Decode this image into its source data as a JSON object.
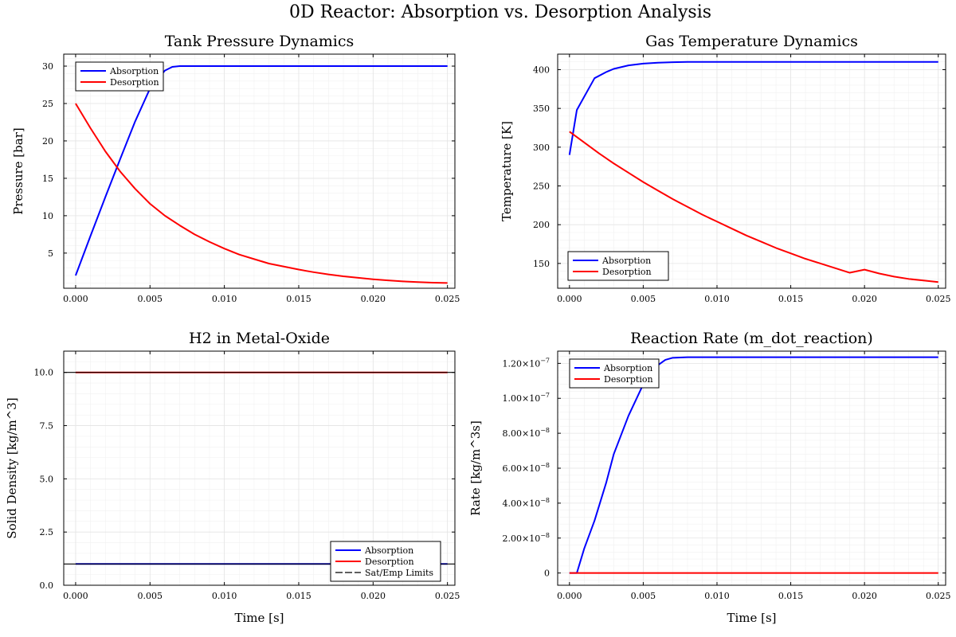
{
  "figure": {
    "suptitle": "0D Reactor: Absorption vs. Desorption Analysis"
  },
  "colors": {
    "absorption": "#0000ff",
    "desorption": "#ff0000",
    "limits": "#000000"
  },
  "chart_data": [
    {
      "id": "pressure",
      "type": "line",
      "title": "Tank Pressure Dynamics",
      "xlabel": "",
      "ylabel": "Pressure [bar]",
      "xlim": [
        -0.0008,
        0.0255
      ],
      "ylim": [
        0.3,
        31.6
      ],
      "xticks": [
        0.0,
        0.005,
        0.01,
        0.015,
        0.02,
        0.025
      ],
      "xticklabels": [
        "0.000",
        "0.005",
        "0.010",
        "0.015",
        "0.020",
        "0.025"
      ],
      "yticks": [
        5,
        10,
        15,
        20,
        25,
        30
      ],
      "yticklabels": [
        "5",
        "10",
        "15",
        "20",
        "25",
        "30"
      ],
      "grid": true,
      "legend_position": "top-left",
      "series": [
        {
          "name": "Absorption",
          "color": "#0000ff",
          "x": [
            0,
            0.001,
            0.002,
            0.003,
            0.004,
            0.005,
            0.006,
            0.0065,
            0.007,
            0.008,
            0.01,
            0.015,
            0.02,
            0.025
          ],
          "y": [
            2.0,
            7.3,
            12.5,
            17.6,
            22.6,
            27.0,
            29.4,
            29.9,
            30.0,
            30.0,
            30.0,
            30.0,
            30.0,
            30.0
          ]
        },
        {
          "name": "Desorption",
          "color": "#ff0000",
          "x": [
            0,
            0.001,
            0.002,
            0.003,
            0.004,
            0.005,
            0.006,
            0.007,
            0.008,
            0.009,
            0.01,
            0.011,
            0.012,
            0.013,
            0.014,
            0.015,
            0.016,
            0.017,
            0.018,
            0.019,
            0.02,
            0.021,
            0.022,
            0.023,
            0.024,
            0.025
          ],
          "y": [
            25.0,
            21.7,
            18.6,
            15.9,
            13.6,
            11.6,
            10.0,
            8.7,
            7.5,
            6.5,
            5.6,
            4.8,
            4.2,
            3.6,
            3.2,
            2.8,
            2.45,
            2.15,
            1.9,
            1.7,
            1.5,
            1.35,
            1.22,
            1.12,
            1.05,
            1.0
          ]
        }
      ]
    },
    {
      "id": "temperature",
      "type": "line",
      "title": "Gas Temperature Dynamics",
      "xlabel": "",
      "ylabel": "Temperature [K]",
      "xlim": [
        -0.0008,
        0.0255
      ],
      "ylim": [
        118,
        420
      ],
      "xticks": [
        0.0,
        0.005,
        0.01,
        0.015,
        0.02,
        0.025
      ],
      "xticklabels": [
        "0.000",
        "0.005",
        "0.010",
        "0.015",
        "0.020",
        "0.025"
      ],
      "yticks": [
        150,
        200,
        250,
        300,
        350,
        400
      ],
      "yticklabels": [
        "150",
        "200",
        "250",
        "300",
        "350",
        "400"
      ],
      "grid": true,
      "legend_position": "bottom-left",
      "series": [
        {
          "name": "Absorption",
          "color": "#0000ff",
          "x": [
            0,
            0.0005,
            0.0017,
            0.0025,
            0.003,
            0.004,
            0.005,
            0.006,
            0.007,
            0.008,
            0.01,
            0.015,
            0.02,
            0.025
          ],
          "y": [
            290,
            348,
            389,
            397,
            401,
            405.5,
            407.8,
            409,
            409.6,
            410,
            410,
            410,
            410,
            410
          ]
        },
        {
          "name": "Desorption",
          "color": "#ff0000",
          "x": [
            0,
            0.001,
            0.002,
            0.003,
            0.004,
            0.005,
            0.006,
            0.007,
            0.008,
            0.009,
            0.01,
            0.011,
            0.012,
            0.013,
            0.014,
            0.015,
            0.016,
            0.017,
            0.018,
            0.019,
            0.02,
            0.021,
            0.022,
            0.023,
            0.024,
            0.025
          ],
          "y": [
            320,
            306,
            292,
            279,
            267,
            255,
            244,
            233,
            223,
            213,
            204,
            195,
            186,
            178,
            170,
            163,
            156,
            150,
            144,
            138,
            142,
            137,
            133,
            130,
            128,
            126
          ]
        }
      ]
    },
    {
      "id": "solid-density",
      "type": "line",
      "title": "H2 in Metal-Oxide",
      "xlabel": "Time [s]",
      "ylabel": "Solid Density [kg/m^3]",
      "xlim": [
        -0.0008,
        0.0255
      ],
      "ylim": [
        0,
        11
      ],
      "xticks": [
        0.0,
        0.005,
        0.01,
        0.015,
        0.02,
        0.025
      ],
      "xticklabels": [
        "0.000",
        "0.005",
        "0.010",
        "0.015",
        "0.020",
        "0.025"
      ],
      "yticks": [
        0,
        2.5,
        5,
        7.5,
        10
      ],
      "yticklabels": [
        "0.0",
        "2.5",
        "5.0",
        "7.5",
        "10.0"
      ],
      "grid": true,
      "legend_position": "bottom-right",
      "series": [
        {
          "name": "Absorption",
          "color": "#0000ff",
          "x": [
            0,
            0.025
          ],
          "y": [
            1.0,
            1.0
          ]
        },
        {
          "name": "Desorption",
          "color": "#ff0000",
          "x": [
            0,
            0.025
          ],
          "y": [
            10.0,
            10.0
          ]
        },
        {
          "name": "Sat/Emp Limits",
          "color": "#000000",
          "hlines": [
            1.0,
            10.0
          ]
        }
      ]
    },
    {
      "id": "reaction-rate",
      "type": "line",
      "title": "Reaction Rate (m_dot_reaction)",
      "xlabel": "Time [s]",
      "ylabel": "Rate [kg/m^3s]",
      "xlim": [
        -0.0008,
        0.0255
      ],
      "ylim": [
        -7e-09,
        1.27e-07
      ],
      "xticks": [
        0.0,
        0.005,
        0.01,
        0.015,
        0.02,
        0.025
      ],
      "xticklabels": [
        "0.000",
        "0.005",
        "0.010",
        "0.015",
        "0.020",
        "0.025"
      ],
      "yticks": [
        0,
        2e-08,
        4e-08,
        6e-08,
        8e-08,
        1e-07,
        1.2e-07
      ],
      "yticklabels": [
        {
          "mant": "0",
          "exp": ""
        },
        {
          "mant": "2.00×10",
          "exp": "−8"
        },
        {
          "mant": "4.00×10",
          "exp": "−8"
        },
        {
          "mant": "6.00×10",
          "exp": "−8"
        },
        {
          "mant": "8.00×10",
          "exp": "−8"
        },
        {
          "mant": "1.00×10",
          "exp": "−7"
        },
        {
          "mant": "1.20×10",
          "exp": "−7"
        }
      ],
      "grid": true,
      "legend_position": "top-left",
      "series": [
        {
          "name": "Absorption",
          "color": "#0000ff",
          "x": [
            0,
            0.0005,
            0.001,
            0.0017,
            0.0025,
            0.003,
            0.004,
            0.005,
            0.006,
            0.0065,
            0.007,
            0.008,
            0.01,
            0.015,
            0.02,
            0.025
          ],
          "y": [
            0,
            0,
            1.4e-08,
            3e-08,
            5.2e-08,
            6.8e-08,
            9e-08,
            1.08e-07,
            1.19e-07,
            1.22e-07,
            1.232e-07,
            1.235e-07,
            1.235e-07,
            1.235e-07,
            1.235e-07,
            1.235e-07
          ]
        },
        {
          "name": "Desorption",
          "color": "#ff0000",
          "x": [
            0,
            0.025
          ],
          "y": [
            0,
            0
          ]
        }
      ]
    }
  ]
}
